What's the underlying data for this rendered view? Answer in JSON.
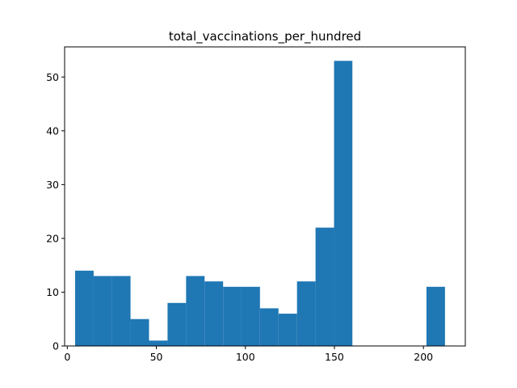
{
  "chart_data": {
    "type": "bar",
    "title": "total_vaccinations_per_hundred",
    "xlabel": "",
    "ylabel": "",
    "bar_color": "#1f77b4",
    "xlim": [
      -1.5,
      223.5
    ],
    "ylim": [
      0,
      55.6
    ],
    "x_ticks": [
      0,
      50,
      100,
      150,
      200
    ],
    "y_ticks": [
      0,
      10,
      20,
      30,
      40,
      50
    ],
    "bins": [
      {
        "x0": 4.4,
        "x1": 14.8,
        "count": 14
      },
      {
        "x0": 14.8,
        "x1": 25.2,
        "count": 13
      },
      {
        "x0": 25.2,
        "x1": 35.5,
        "count": 13
      },
      {
        "x0": 35.5,
        "x1": 45.9,
        "count": 5
      },
      {
        "x0": 45.9,
        "x1": 56.3,
        "count": 1
      },
      {
        "x0": 56.3,
        "x1": 66.7,
        "count": 8
      },
      {
        "x0": 66.7,
        "x1": 77.1,
        "count": 13
      },
      {
        "x0": 77.1,
        "x1": 87.5,
        "count": 12
      },
      {
        "x0": 87.5,
        "x1": 97.8,
        "count": 11
      },
      {
        "x0": 97.8,
        "x1": 108.2,
        "count": 11
      },
      {
        "x0": 108.2,
        "x1": 118.6,
        "count": 7
      },
      {
        "x0": 118.6,
        "x1": 129.0,
        "count": 6
      },
      {
        "x0": 129.0,
        "x1": 139.4,
        "count": 12
      },
      {
        "x0": 139.4,
        "x1": 149.8,
        "count": 22
      },
      {
        "x0": 149.8,
        "x1": 160.1,
        "count": 53
      },
      {
        "x0": 160.1,
        "x1": 170.5,
        "count": 0
      },
      {
        "x0": 170.5,
        "x1": 180.9,
        "count": 0
      },
      {
        "x0": 180.9,
        "x1": 191.3,
        "count": 0
      },
      {
        "x0": 191.3,
        "x1": 201.7,
        "count": 0
      },
      {
        "x0": 201.7,
        "x1": 212.1,
        "count": 11
      }
    ]
  }
}
